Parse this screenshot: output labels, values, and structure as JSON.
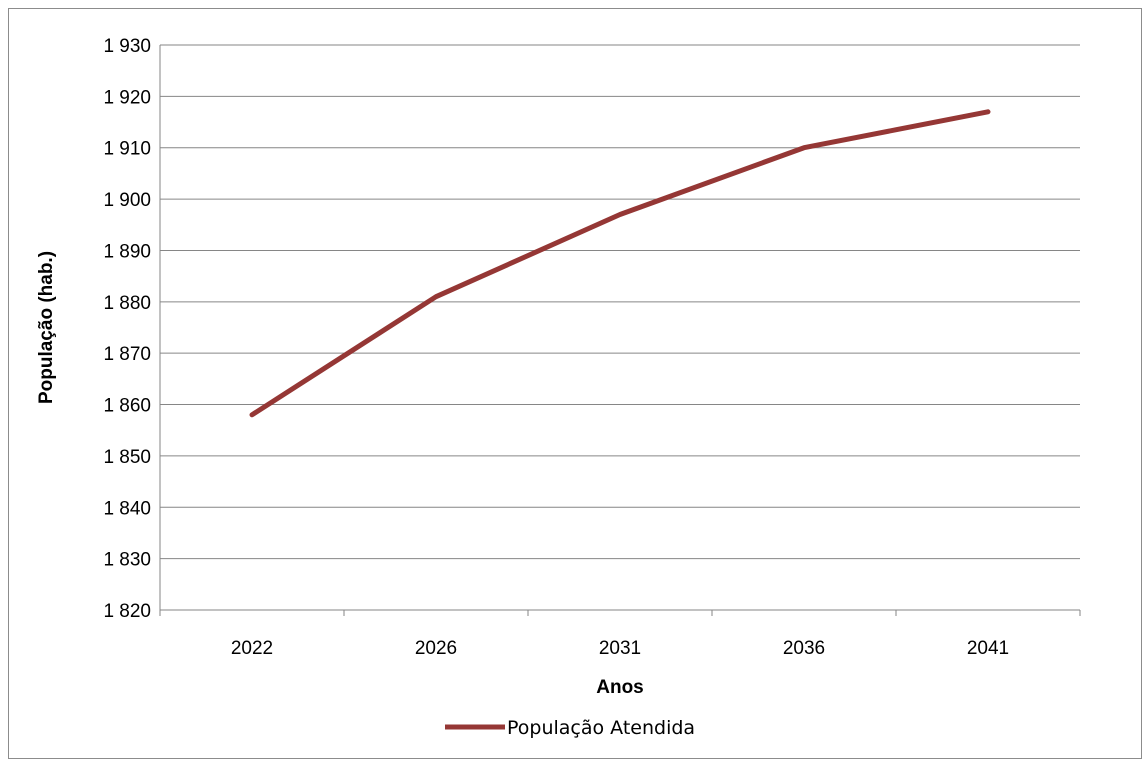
{
  "chart_data": {
    "type": "line",
    "categories": [
      "2022",
      "2026",
      "2031",
      "2036",
      "2041"
    ],
    "series": [
      {
        "name": "População Atendida",
        "values": [
          1858,
          1881,
          1897,
          1910,
          1917
        ],
        "color": "#953735"
      }
    ],
    "xlabel": "Anos",
    "ylabel": "População (hab.)",
    "ylim": [
      1820,
      1930
    ],
    "ytick_step": 10,
    "ytick_labels": [
      "1 820",
      "1 830",
      "1 840",
      "1 850",
      "1 860",
      "1 870",
      "1 880",
      "1 890",
      "1 900",
      "1 910",
      "1 920",
      "1 930"
    ],
    "grid": true,
    "legend": "bottom",
    "colors": {
      "gridline": "#868686",
      "axis": "#868686"
    }
  }
}
